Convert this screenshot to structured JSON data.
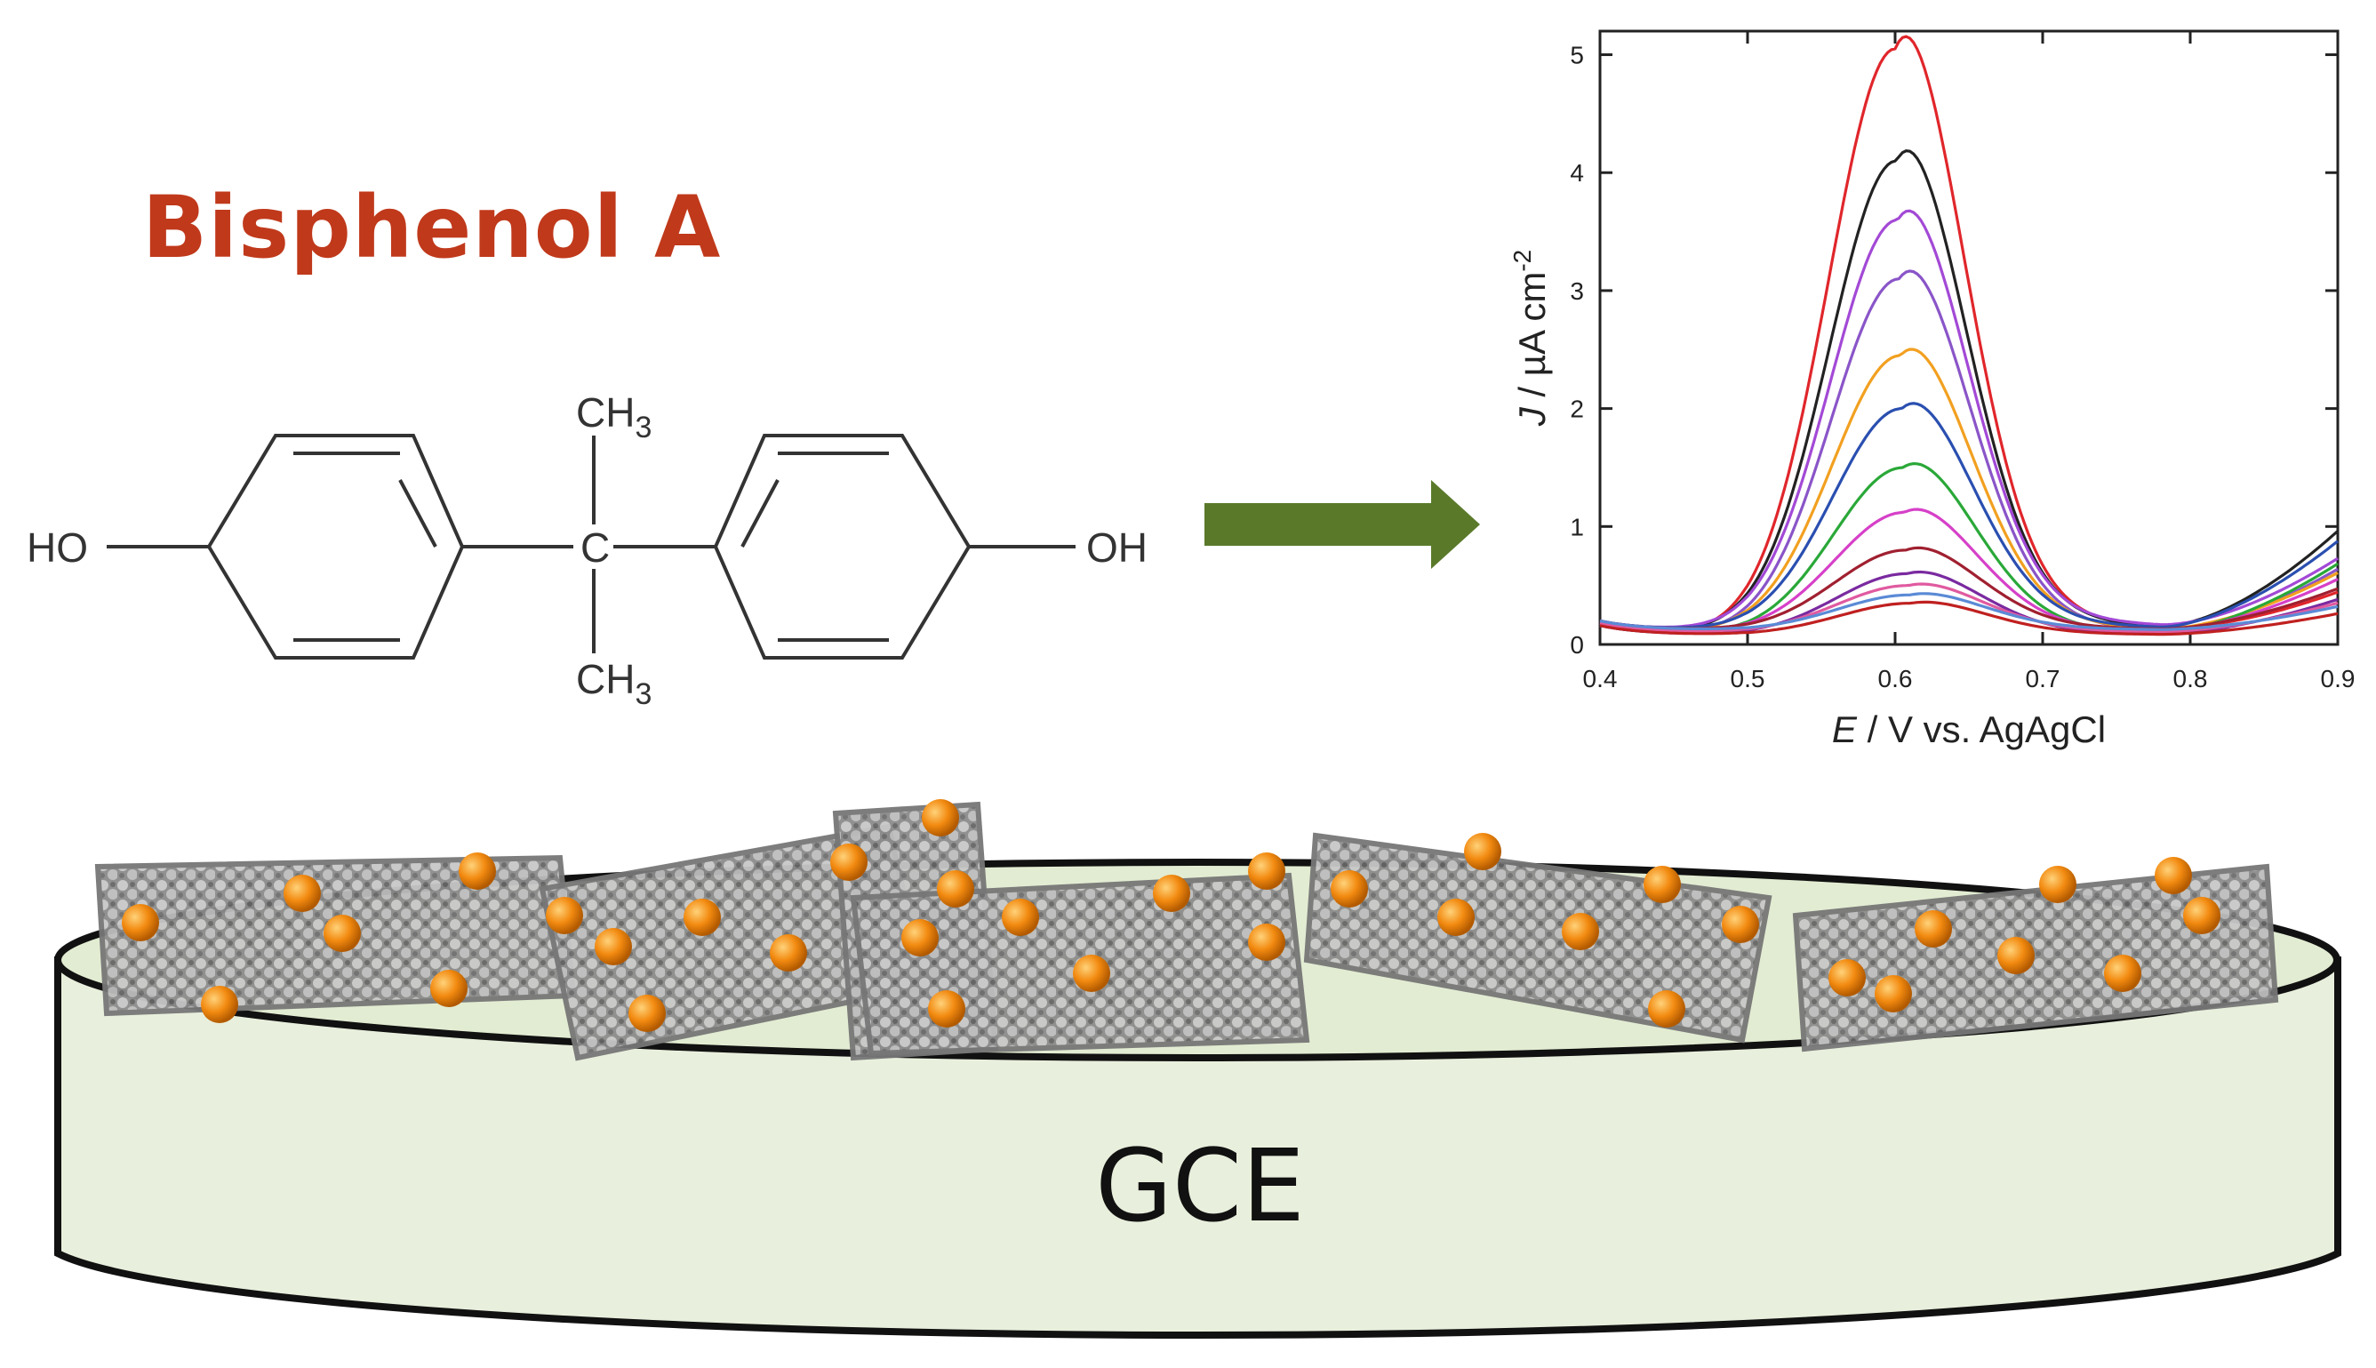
{
  "title": "Bisphenol A",
  "molecule": {
    "left_group": "HO",
    "right_group": "OH",
    "center_atom": "C",
    "top_group": "CH",
    "top_sub": "3",
    "bottom_group": "CH",
    "bottom_sub": "3"
  },
  "electrode_label": "GCE",
  "colors": {
    "title": "#c0391b",
    "arrow": "#5a7a2a",
    "electrode_fill": "#e8efdc",
    "particle": "#f28a10"
  },
  "chart_data": {
    "type": "line",
    "xlabel_italic": "E",
    "xlabel_rest": " / V vs. AgAgCl",
    "ylabel_italic": "J",
    "ylabel_rest": " / µA cm",
    "ylabel_sup": "-2",
    "xlim": [
      0.4,
      0.9
    ],
    "ylim": [
      0,
      5.2
    ],
    "xticks": [
      "0.4",
      "0.5",
      "0.6",
      "0.7",
      "0.8",
      "0.9"
    ],
    "yticks": [
      "0",
      "1",
      "2",
      "3",
      "4",
      "5"
    ],
    "peak_x": 0.6,
    "series": [
      {
        "color": "#e0262b",
        "peak": 5.05,
        "tail": 0.35
      },
      {
        "color": "#222222",
        "peak": 4.1,
        "tail": 0.85
      },
      {
        "color": "#a349d6",
        "peak": 3.6,
        "tail": 0.6
      },
      {
        "color": "#8a55c8",
        "peak": 3.1,
        "tail": 0.55
      },
      {
        "color": "#f2a020",
        "peak": 2.45,
        "tail": 0.5
      },
      {
        "color": "#2a4fb0",
        "peak": 2.0,
        "tail": 0.75
      },
      {
        "color": "#2aa838",
        "peak": 1.5,
        "tail": 0.6
      },
      {
        "color": "#d640c8",
        "peak": 1.12,
        "tail": 0.45
      },
      {
        "color": "#a02030",
        "peak": 0.8,
        "tail": 0.35
      },
      {
        "color": "#7a2aa0",
        "peak": 0.6,
        "tail": 0.3
      },
      {
        "color": "#e05aa0",
        "peak": 0.5,
        "tail": 0.25
      },
      {
        "color": "#5a8ad6",
        "peak": 0.42,
        "tail": 0.2
      },
      {
        "color": "#c02020",
        "peak": 0.35,
        "tail": 0.18
      }
    ]
  }
}
